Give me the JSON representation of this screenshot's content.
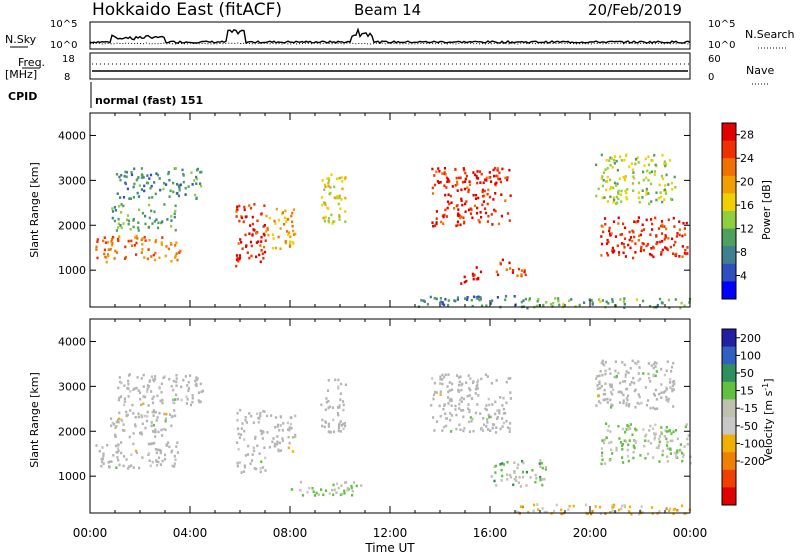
{
  "header": {
    "title": "Hokkaido East (fitACF)",
    "beam": "Beam 14",
    "date": "20/Feb/2019"
  },
  "status_panels": {
    "nsky_label": "N.Sky",
    "nsky_ticks": [
      "10^5",
      "10^0"
    ],
    "nsearch_label": "N.Search",
    "nsearch_ticks": [
      "10^5",
      "10^0"
    ],
    "freq_label": "Freq.",
    "freq_unit": "[MHz]",
    "freq_ticks": [
      "18",
      "8"
    ],
    "nave_label": "Nave",
    "nave_ticks": [
      "60",
      "0"
    ],
    "cpid_label": "CPID",
    "cpid_value": "normal (fast) 151"
  },
  "colors": {
    "power": [
      "#0000ff",
      "#2f4fbf",
      "#3f7f8f",
      "#4f9f5f",
      "#8fcf3f",
      "#f0d000",
      "#f0a000",
      "#f07000",
      "#f03000",
      "#e00000"
    ],
    "velocity": [
      "#2020a0",
      "#3060c0",
      "#2f8f5f",
      "#60c040",
      "#c0c0b0",
      "#c8c8c8",
      "#f0b000",
      "#f08000",
      "#f04000",
      "#e00000"
    ],
    "ground_scatter": "#b4b4b4"
  },
  "chart_data": [
    {
      "type": "heatmap",
      "name": "power",
      "xlabel": "",
      "ylabel": "Slant Range [km]",
      "xlim": [
        "00:00",
        "00:00"
      ],
      "ylim": [
        180,
        4500
      ],
      "yticks": [
        1000,
        2000,
        3000,
        4000
      ],
      "colorbar": {
        "label": "Power [dB]",
        "ticks": [
          4,
          8,
          12,
          16,
          20,
          24,
          28
        ],
        "range": [
          0,
          30
        ]
      },
      "regions": [
        {
          "t": [
            0.2,
            3.6
          ],
          "r": [
            1200,
            1800
          ],
          "level": 22
        },
        {
          "t": [
            0.8,
            3.4
          ],
          "r": [
            1900,
            2500
          ],
          "level": 11
        },
        {
          "t": [
            1.0,
            4.5
          ],
          "r": [
            2600,
            3300
          ],
          "level": 9
        },
        {
          "t": [
            5.8,
            7.0
          ],
          "r": [
            1100,
            2500
          ],
          "level": 27
        },
        {
          "t": [
            7.0,
            8.2
          ],
          "r": [
            1500,
            2400
          ],
          "level": 20
        },
        {
          "t": [
            9.2,
            10.2
          ],
          "r": [
            2000,
            3200
          ],
          "level": 16
        },
        {
          "t": [
            13.6,
            16.8
          ],
          "r": [
            2000,
            3300
          ],
          "level": 27
        },
        {
          "t": [
            14.8,
            15.6
          ],
          "r": [
            700,
            1100
          ],
          "level": 28
        },
        {
          "t": [
            16.2,
            17.4
          ],
          "r": [
            900,
            1300
          ],
          "level": 26
        },
        {
          "t": [
            20.4,
            24.0
          ],
          "r": [
            1300,
            2200
          ],
          "level": 27
        },
        {
          "t": [
            20.2,
            23.4
          ],
          "r": [
            2500,
            3600
          ],
          "level": 14
        },
        {
          "t": [
            13.0,
            17.0
          ],
          "r": [
            200,
            450
          ],
          "level": 8
        },
        {
          "t": [
            17.0,
            24.0
          ],
          "r": [
            180,
            400
          ],
          "level": 12
        }
      ]
    },
    {
      "type": "heatmap",
      "name": "velocity",
      "xlabel": "Time UT",
      "ylabel": "Slant Range [km]",
      "xticks": [
        "00:00",
        "04:00",
        "08:00",
        "12:00",
        "16:00",
        "20:00",
        "00:00"
      ],
      "ylim": [
        180,
        4500
      ],
      "yticks": [
        1000,
        2000,
        3000,
        4000
      ],
      "colorbar": {
        "label": "Velocity [m s^-1]",
        "ticks": [
          200,
          100,
          50,
          15,
          -15,
          -50,
          -100,
          -200
        ],
        "range": [
          -250,
          250
        ]
      },
      "regions": [
        {
          "t": [
            0.2,
            3.6
          ],
          "r": [
            1200,
            1800
          ],
          "level": 0,
          "gs": true
        },
        {
          "t": [
            0.8,
            3.4
          ],
          "r": [
            1900,
            2500
          ],
          "level": 0,
          "gs": true
        },
        {
          "t": [
            1.0,
            4.5
          ],
          "r": [
            2600,
            3300
          ],
          "level": 0,
          "gs": true
        },
        {
          "t": [
            5.8,
            7.0
          ],
          "r": [
            1100,
            2500
          ],
          "level": 0,
          "gs": true
        },
        {
          "t": [
            7.0,
            8.2
          ],
          "r": [
            1500,
            2400
          ],
          "level": 0,
          "gs": true
        },
        {
          "t": [
            9.2,
            10.2
          ],
          "r": [
            2000,
            3200
          ],
          "level": 0,
          "gs": true
        },
        {
          "t": [
            13.6,
            16.8
          ],
          "r": [
            2000,
            3300
          ],
          "level": 0,
          "gs": true
        },
        {
          "t": [
            16.0,
            18.2
          ],
          "r": [
            800,
            1400
          ],
          "level": 60,
          "gs": false
        },
        {
          "t": [
            20.4,
            24.0
          ],
          "r": [
            1300,
            2200
          ],
          "level": 40,
          "gs": false
        },
        {
          "t": [
            20.2,
            23.4
          ],
          "r": [
            2500,
            3600
          ],
          "level": 0,
          "gs": true
        },
        {
          "t": [
            8.0,
            11.0
          ],
          "r": [
            600,
            900
          ],
          "level": 40,
          "gs": false
        },
        {
          "t": [
            17.0,
            24.0
          ],
          "r": [
            180,
            400
          ],
          "level": -60,
          "gs": false
        }
      ]
    }
  ]
}
